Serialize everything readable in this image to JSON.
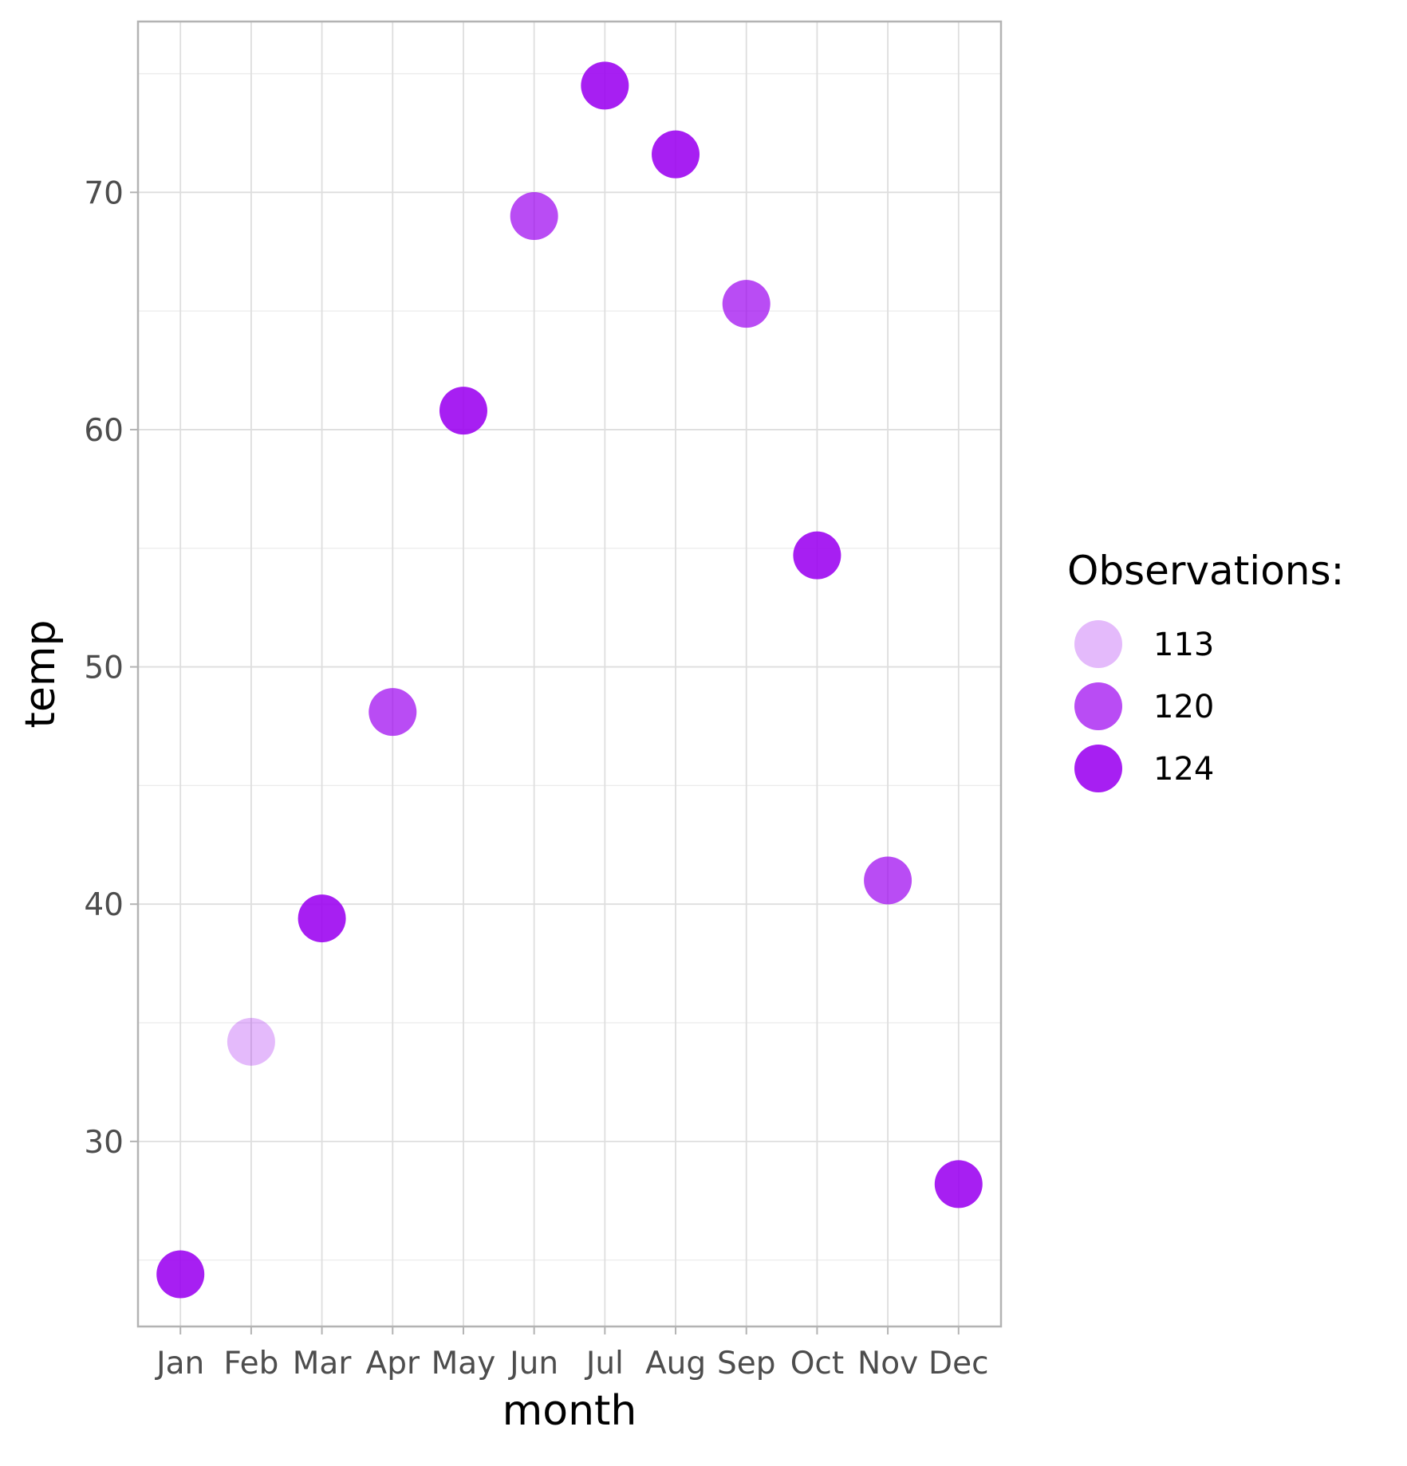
{
  "chart_data": {
    "type": "scatter",
    "title": "",
    "xlabel": "month",
    "ylabel": "temp",
    "categories": [
      "Jan",
      "Feb",
      "Mar",
      "Apr",
      "May",
      "Jun",
      "Jul",
      "Aug",
      "Sep",
      "Oct",
      "Nov",
      "Dec"
    ],
    "values": [
      24.4,
      34.2,
      39.4,
      48.1,
      60.8,
      69.0,
      74.5,
      71.6,
      65.3,
      54.7,
      41.0,
      28.2
    ],
    "observations": [
      124,
      113,
      124,
      120,
      124,
      120,
      124,
      124,
      120,
      124,
      120,
      124
    ],
    "ylim": [
      22.2,
      77.2
    ],
    "yticks": [
      30,
      40,
      50,
      60,
      70
    ],
    "grid": true,
    "legend": {
      "title": "Observations:",
      "position": "right",
      "entries": [
        {
          "label": "113",
          "value": 113,
          "color": "#9B00F0",
          "opacity": 0.27
        },
        {
          "label": "120",
          "value": 120,
          "color": "#9B00F0",
          "opacity": 0.7
        },
        {
          "label": "124",
          "value": 124,
          "color": "#9B00F0",
          "opacity": 0.88
        }
      ]
    },
    "point_color": "#9B00F0"
  }
}
